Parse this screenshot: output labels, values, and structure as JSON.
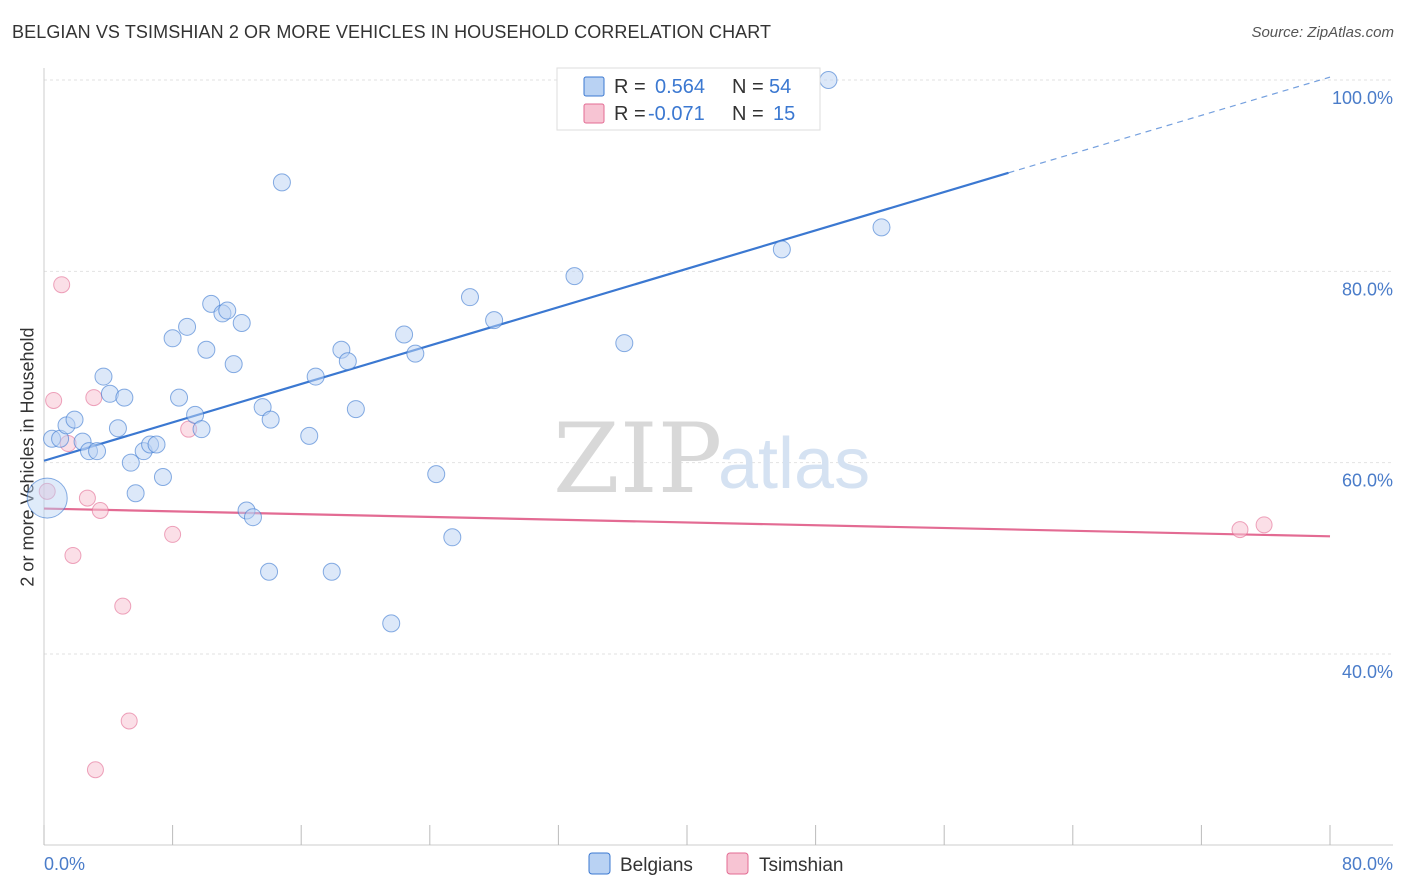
{
  "title": "BELGIAN VS TSIMSHIAN 2 OR MORE VEHICLES IN HOUSEHOLD CORRELATION CHART",
  "source": "Source: ZipAtlas.com",
  "watermark": {
    "zip": "ZIP",
    "atlas": "atlas"
  },
  "legend": {
    "rows": [
      {
        "r_label": "R =",
        "r_value": "0.564",
        "n_label": "N =",
        "n_value": "54"
      },
      {
        "r_label": "R =",
        "r_value": "-0.071",
        "n_label": "N =",
        "n_value": "15"
      }
    ]
  },
  "bottom_legend": [
    "Belgians",
    "Tsimshian"
  ],
  "chart_data": {
    "type": "scatter",
    "ylabel": "2 or more Vehicles in Household",
    "xlim": [
      0,
      80
    ],
    "ylim": [
      20,
      103
    ],
    "x_ticks": [
      {
        "value": 0,
        "label": "0.0%"
      },
      {
        "value": 80,
        "label": "80.0%"
      }
    ],
    "y_ticks": [
      {
        "value": 40,
        "label": "40.0%"
      },
      {
        "value": 60,
        "label": "60.0%"
      },
      {
        "value": 80,
        "label": "80.0%"
      },
      {
        "value": 100,
        "label": "100.0%"
      }
    ],
    "colors": {
      "belgians": "#3b78d1",
      "belgians_fill": "#b9d2f3",
      "tsimshian": "#e36b93",
      "tsimshian_fill": "#f7c4d3"
    },
    "series": [
      {
        "name": "Belgians",
        "trend": {
          "x0": 0,
          "y0": 60.2,
          "x1": 60,
          "y1": 90.3,
          "x_dash_end": 80,
          "y_dash_end": 100.3
        },
        "points": [
          [
            0.2,
            56.3
          ],
          [
            0.5,
            62.5
          ],
          [
            1.0,
            62.5
          ],
          [
            1.4,
            63.9
          ],
          [
            1.9,
            64.5
          ],
          [
            2.4,
            62.2
          ],
          [
            2.8,
            61.2
          ],
          [
            3.3,
            61.2
          ],
          [
            3.7,
            69.0
          ],
          [
            4.1,
            67.2
          ],
          [
            4.6,
            63.6
          ],
          [
            5.0,
            66.8
          ],
          [
            5.4,
            60.0
          ],
          [
            5.7,
            56.8
          ],
          [
            6.2,
            61.2
          ],
          [
            6.6,
            61.9
          ],
          [
            7.0,
            61.9
          ],
          [
            7.4,
            58.5
          ],
          [
            8.0,
            73.0
          ],
          [
            8.4,
            66.8
          ],
          [
            8.9,
            74.2
          ],
          [
            9.4,
            65.0
          ],
          [
            9.8,
            63.5
          ],
          [
            10.1,
            71.8
          ],
          [
            10.4,
            76.6
          ],
          [
            11.1,
            75.6
          ],
          [
            11.4,
            75.9
          ],
          [
            11.8,
            70.3
          ],
          [
            12.3,
            74.6
          ],
          [
            12.6,
            55.0
          ],
          [
            13.0,
            54.3
          ],
          [
            13.6,
            65.8
          ],
          [
            14.0,
            48.6
          ],
          [
            14.1,
            64.5
          ],
          [
            14.8,
            89.3
          ],
          [
            16.5,
            62.8
          ],
          [
            16.9,
            69.0
          ],
          [
            17.9,
            48.6
          ],
          [
            18.5,
            71.8
          ],
          [
            18.9,
            70.6
          ],
          [
            19.4,
            65.6
          ],
          [
            21.6,
            43.2
          ],
          [
            22.4,
            73.4
          ],
          [
            23.1,
            71.4
          ],
          [
            24.4,
            58.8
          ],
          [
            25.4,
            52.2
          ],
          [
            26.5,
            77.3
          ],
          [
            28.0,
            74.9
          ],
          [
            33.0,
            79.5
          ],
          [
            36.1,
            72.5
          ],
          [
            44.2,
            100.2
          ],
          [
            45.9,
            82.3
          ],
          [
            48.8,
            100.0
          ],
          [
            52.1,
            84.6
          ]
        ]
      },
      {
        "name": "Tsimshian",
        "trend": {
          "x0": 0,
          "y0": 55.2,
          "x1": 80,
          "y1": 52.3
        },
        "points": [
          [
            0.2,
            57.0
          ],
          [
            0.6,
            66.5
          ],
          [
            1.1,
            78.6
          ],
          [
            1.5,
            62.0
          ],
          [
            1.8,
            50.3
          ],
          [
            2.7,
            56.3
          ],
          [
            3.1,
            66.8
          ],
          [
            3.2,
            27.9
          ],
          [
            3.5,
            55.0
          ],
          [
            4.9,
            45.0
          ],
          [
            5.3,
            33.0
          ],
          [
            8.0,
            52.5
          ],
          [
            9.0,
            63.5
          ],
          [
            74.4,
            53.0
          ],
          [
            75.9,
            53.5
          ]
        ]
      }
    ]
  }
}
